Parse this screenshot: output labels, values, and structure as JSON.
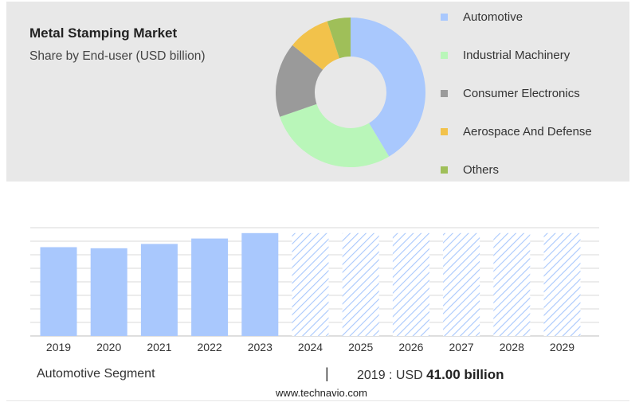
{
  "header": {
    "title": "Metal Stamping Market",
    "subtitle": "Share by End-user (USD billion)"
  },
  "chart_data": [
    {
      "type": "pie",
      "variant": "donut",
      "slices": [
        {
          "label": "Automotive",
          "value": 41,
          "color": "#a9c8fd"
        },
        {
          "label": "Industrial Machinery",
          "value": 28,
          "color": "#b9f6b9"
        },
        {
          "label": "Consumer Electronics",
          "value": 16,
          "color": "#9a9a9a"
        },
        {
          "label": "Aerospace And Defense",
          "value": 9,
          "color": "#f2c24b"
        },
        {
          "label": "Others",
          "value": 5,
          "color": "#9fbf59"
        }
      ],
      "legend_position": "right"
    },
    {
      "type": "bar",
      "categories": [
        "2019",
        "2020",
        "2021",
        "2022",
        "2023",
        "2024",
        "2025",
        "2026",
        "2027",
        "2028",
        "2029"
      ],
      "values": [
        41.0,
        40.5,
        42.5,
        45.0,
        47.5,
        null,
        null,
        null,
        null,
        null,
        null
      ],
      "forecast_categories": [
        "2024",
        "2025",
        "2026",
        "2027",
        "2028",
        "2029"
      ],
      "ylim": [
        0,
        50
      ],
      "grid": true,
      "bar_color": "#a9c8fd",
      "forecast_color": "#a9c8fd"
    }
  ],
  "footer": {
    "segment": "Automotive Segment",
    "separator": "|",
    "value_prefix": "2019 : USD",
    "value_bold": "41.00 billion",
    "website": "www.technavio.com"
  }
}
